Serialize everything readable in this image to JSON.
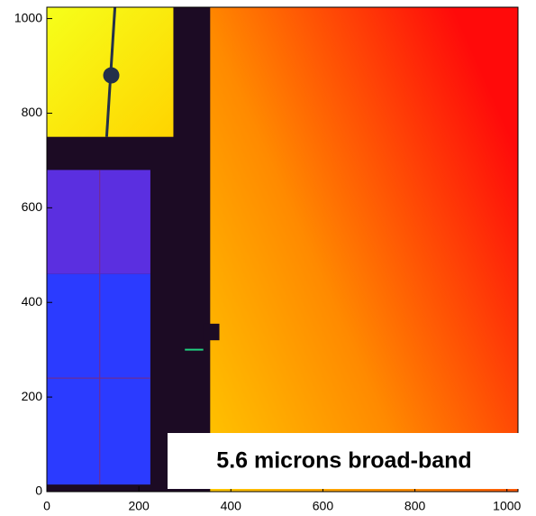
{
  "chart_data": {
    "type": "image",
    "annotation": "5.6 microns broad-band",
    "xlim": [
      0,
      1024
    ],
    "ylim": [
      0,
      1024
    ],
    "xticks": [
      0,
      200,
      400,
      600,
      800,
      1000
    ],
    "yticks": [
      0,
      200,
      400,
      600,
      800,
      1000
    ]
  }
}
